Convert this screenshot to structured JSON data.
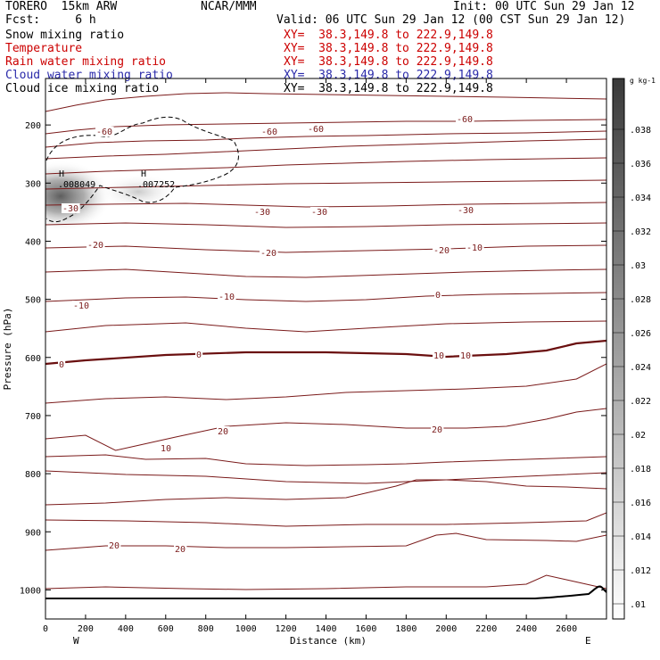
{
  "header": {
    "model": "TORERO  15km ARW",
    "center": "NCAR/MMM",
    "init": "Init: 00 UTC Sun 29 Jan 12",
    "fcst": "Fcst:     6 h",
    "valid": "Valid: 06 UTC Sun 29 Jan 12 (00 CST Sun 29 Jan 12)"
  },
  "fields": [
    {
      "name": "Snow mixing ratio",
      "xy": "XY=  38.3,149.8 to 222.9,149.8",
      "color": "#000000"
    },
    {
      "name": "Temperature",
      "xy": "XY=  38.3,149.8 to 222.9,149.8",
      "color": "#cc0000"
    },
    {
      "name": "Rain water mixing ratio",
      "xy": "XY=  38.3,149.8 to 222.9,149.8",
      "color": "#cc0000"
    },
    {
      "name": "Cloud water mixing ratio",
      "xy": "XY=  38.3,149.8 to 222.9,149.8",
      "color": "#2a2aaa"
    },
    {
      "name": "Cloud ice mixing ratio",
      "xy": "XY=  38.3,149.8 to 222.9,149.8",
      "color": "#000000"
    }
  ],
  "colors": {
    "temperature": "#7a1a1a",
    "frame": "#000000",
    "shade": "#555555"
  },
  "chart_data": {
    "type": "contour",
    "xlabel": "Distance (km)",
    "ylabel": "Pressure (hPa)",
    "x_ticks": [
      "0",
      "200",
      "400",
      "600",
      "800",
      "1000",
      "1200",
      "1400",
      "1600",
      "1800",
      "2000",
      "2200",
      "2400",
      "2600"
    ],
    "xlim": [
      0,
      2800
    ],
    "y_ticks": [
      "200",
      "300",
      "400",
      "500",
      "600",
      "700",
      "800",
      "900",
      "1000"
    ],
    "ylim": [
      1050,
      120
    ],
    "endpoint_labels": [
      "W",
      "E"
    ],
    "colorbar": {
      "unit": "g kg-1",
      "ticks": [
        ".01",
        ".012",
        ".014",
        ".016",
        ".018",
        ".02",
        ".022",
        ".024",
        ".026",
        ".028",
        ".03",
        ".032",
        ".034",
        ".036",
        ".038"
      ]
    },
    "temperature_contour_labels": [
      "-60",
      "-60",
      "-60",
      "-60",
      "-30",
      "-30",
      "-30",
      "-30",
      "-20",
      "-20",
      "-20",
      "-10",
      "-10",
      "-10",
      "0",
      "0",
      "0",
      "10",
      "10",
      "10",
      "20",
      "20",
      "20",
      "20"
    ],
    "maxima": [
      {
        "label": "H",
        "value": ".008049"
      },
      {
        "label": "H",
        "value": ".007252"
      }
    ]
  }
}
